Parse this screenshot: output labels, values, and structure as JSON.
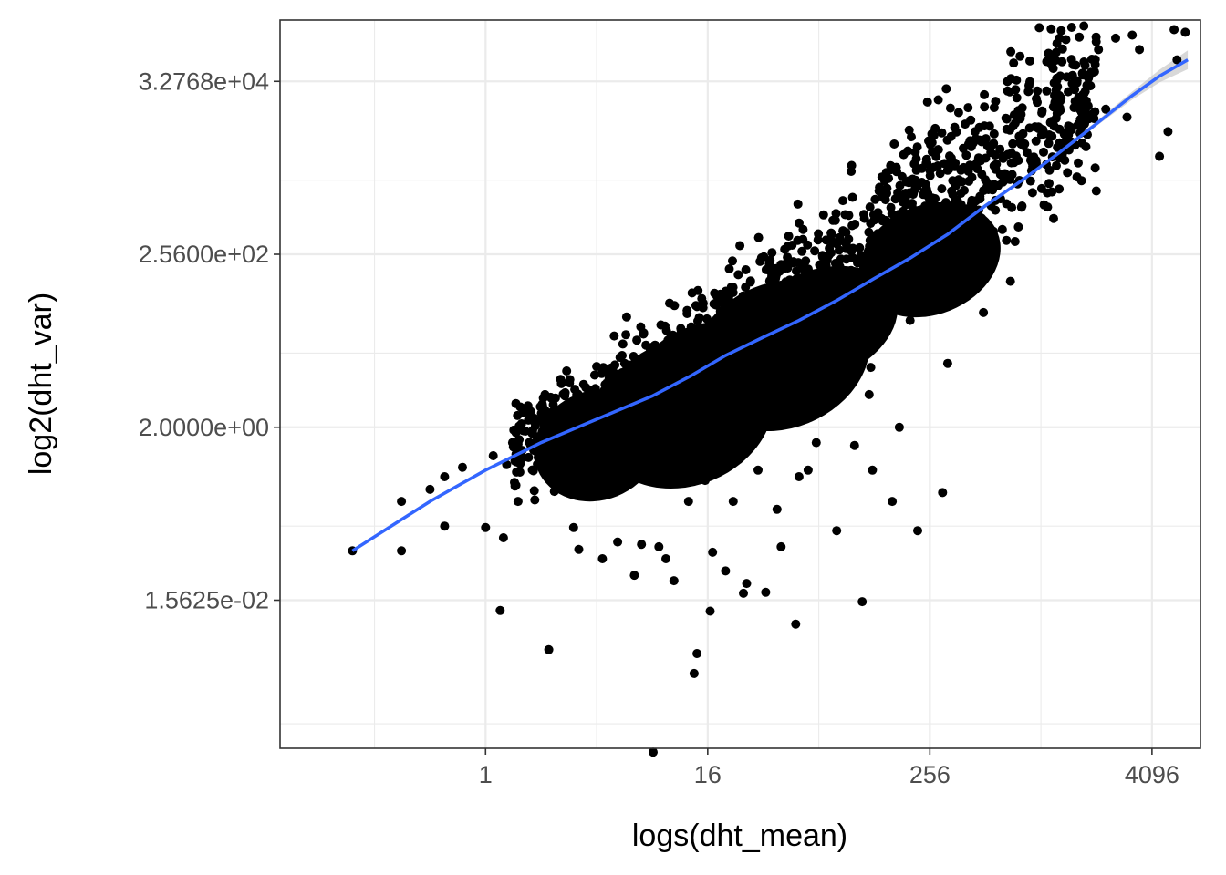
{
  "chart_data": {
    "type": "scatter",
    "title": "",
    "xlabel": "logs(dht_mean)",
    "ylabel": "log2(dht_var)",
    "x_scale": "log2",
    "y_scale": "log2",
    "xlim": [
      0.0769,
      7500
    ],
    "ylim": [
      0.000245,
      183000
    ],
    "x_ticks": [
      {
        "value": 1,
        "label": "1"
      },
      {
        "value": 16,
        "label": "16"
      },
      {
        "value": 256,
        "label": "256"
      },
      {
        "value": 4096,
        "label": "4096"
      }
    ],
    "y_ticks": [
      {
        "value": 0.015625,
        "label": "1.5625e-02"
      },
      {
        "value": 2,
        "label": "2.0000e+00"
      },
      {
        "value": 256,
        "label": "2.5600e+02"
      },
      {
        "value": 32768,
        "label": "3.2768e+04"
      }
    ],
    "x_minor_ticks": [
      0.25,
      4,
      64,
      1024
    ],
    "y_minor_ticks": [
      0.000488,
      0.125,
      16,
      2048
    ],
    "grid": true,
    "point_color": "#000000",
    "smooth_color": "#3366ff",
    "ribbon_color": "#bebebe",
    "points": [
      [
        0.19,
        0.0625
      ],
      [
        0.35,
        0.0625
      ],
      [
        0.35,
        0.25
      ],
      [
        0.5,
        0.35
      ],
      [
        0.6,
        0.5
      ],
      [
        0.6,
        0.125
      ],
      [
        0.75,
        0.65
      ],
      [
        1.0,
        0.12
      ],
      [
        1.1,
        0.9
      ],
      [
        1.2,
        0.0117
      ],
      [
        1.25,
        0.09
      ],
      [
        1.3,
        0.7
      ],
      [
        1.4,
        1.3
      ],
      [
        1.5,
        0.25
      ],
      [
        1.6,
        3.0
      ],
      [
        1.85,
        0.26
      ],
      [
        2.0,
        2.5
      ],
      [
        2.1,
        5.0
      ],
      [
        2.2,
        0.0039
      ],
      [
        2.4,
        0.5
      ],
      [
        2.6,
        7.0
      ],
      [
        2.8,
        1.0
      ],
      [
        3.0,
        0.12
      ],
      [
        3.2,
        0.065
      ],
      [
        3.6,
        2.0
      ],
      [
        4.0,
        11.0
      ],
      [
        4.3,
        0.05
      ],
      [
        4.4,
        0.53
      ],
      [
        5.0,
        1.6
      ],
      [
        5.2,
        0.08
      ],
      [
        5.5,
        15.0
      ],
      [
        5.8,
        0.9
      ],
      [
        6.4,
        0.0315
      ],
      [
        6.8,
        3.0
      ],
      [
        7.0,
        0.075
      ],
      [
        7.4,
        20.0
      ],
      [
        8.1,
        0.00022
      ],
      [
        8.5,
        1.5
      ],
      [
        8.7,
        0.07
      ],
      [
        9.5,
        0.05
      ],
      [
        10,
        8.0
      ],
      [
        10.5,
        0.027
      ],
      [
        11.0,
        0.5
      ],
      [
        11.5,
        30.0
      ],
      [
        12.6,
        0.25
      ],
      [
        13.5,
        0.002
      ],
      [
        14.0,
        0.0035
      ],
      [
        15.0,
        10.0
      ],
      [
        15.5,
        0.45
      ],
      [
        16.5,
        0.0115
      ],
      [
        17,
        0.06
      ],
      [
        18,
        40.0
      ],
      [
        19,
        1.4
      ],
      [
        20,
        0.0355
      ],
      [
        22,
        0.25
      ],
      [
        24,
        60.0
      ],
      [
        25,
        0.019
      ],
      [
        26,
        0.025
      ],
      [
        28,
        3.0
      ],
      [
        30,
        0.6
      ],
      [
        33,
        0.0195
      ],
      [
        36,
        100.0
      ],
      [
        38,
        0.2
      ],
      [
        40,
        0.07
      ],
      [
        44,
        7.5
      ],
      [
        48,
        0.008
      ],
      [
        50,
        0.5
      ],
      [
        52,
        180.0
      ],
      [
        56,
        0.6
      ],
      [
        62,
        1.3
      ],
      [
        70,
        20.0
      ],
      [
        80,
        0.11
      ],
      [
        90,
        300.0
      ],
      [
        100,
        1.2
      ],
      [
        110,
        0.015
      ],
      [
        120,
        5.0
      ],
      [
        125,
        0.6
      ],
      [
        140,
        700.0
      ],
      [
        160,
        0.25
      ],
      [
        175,
        2.0
      ],
      [
        200,
        40.0
      ],
      [
        220,
        0.11
      ],
      [
        240,
        1500.0
      ],
      [
        300,
        0.32
      ],
      [
        320,
        12.0
      ],
      [
        350,
        3000.0
      ],
      [
        400,
        200.0
      ],
      [
        450,
        8000.0
      ],
      [
        500,
        50.0
      ],
      [
        550,
        1000.0
      ],
      [
        640,
        4000.0
      ],
      [
        700,
        120.0
      ],
      [
        800,
        13000.0
      ],
      [
        900,
        2000.0
      ],
      [
        1100,
        25000.0
      ],
      [
        1200,
        700.0
      ],
      [
        1500,
        6000.0
      ],
      [
        1700,
        9000.0
      ],
      [
        1900,
        40000.0
      ],
      [
        2100,
        80000.0
      ],
      [
        2300,
        15000.0
      ],
      [
        2600,
        110000.0
      ],
      [
        3000,
        12000.0
      ],
      [
        3200,
        120000.0
      ],
      [
        3500,
        80000.0
      ],
      [
        4500,
        4000.0
      ],
      [
        5000,
        8000.0
      ],
      [
        5400,
        140000.0
      ],
      [
        5600,
        60000.0
      ],
      [
        6200,
        130000.0
      ]
    ],
    "smooth_line": [
      [
        0.19,
        0.0625
      ],
      [
        0.35,
        0.15
      ],
      [
        0.5,
        0.25
      ],
      [
        1.0,
        0.6
      ],
      [
        2.0,
        1.3
      ],
      [
        4.0,
        2.5
      ],
      [
        8.0,
        4.8
      ],
      [
        13.0,
        8.5
      ],
      [
        20.0,
        15.0
      ],
      [
        32.0,
        25.0
      ],
      [
        50.0,
        40.0
      ],
      [
        80.0,
        70.0
      ],
      [
        128,
        130.0
      ],
      [
        200,
        230.0
      ],
      [
        320,
        450.0
      ],
      [
        512,
        1000.0
      ],
      [
        800,
        2000.0
      ],
      [
        1280,
        4400.0
      ],
      [
        2048,
        10000.0
      ],
      [
        3200,
        22000.0
      ],
      [
        4500,
        38000.0
      ],
      [
        6400,
        60000.0
      ]
    ]
  }
}
